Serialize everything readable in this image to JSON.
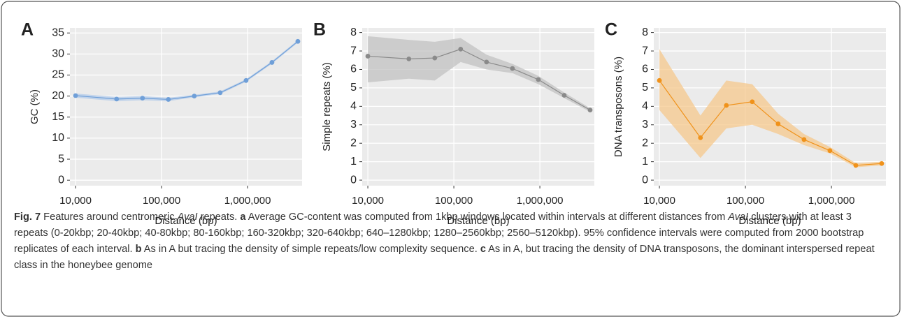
{
  "chart_data": [
    {
      "type": "line",
      "panel": "A",
      "ylabel": "GC (%)",
      "xlabel": "Distance (bp)",
      "log_x": true,
      "grid": true,
      "color": "#6f9fd8",
      "band_color": "#b3cbea",
      "x": [
        10000,
        30000,
        60000,
        120000,
        240000,
        480000,
        960000,
        1920000,
        3840000
      ],
      "values": [
        20.1,
        19.3,
        19.5,
        19.2,
        20.0,
        20.8,
        23.7,
        28.0,
        33.0
      ],
      "lower": [
        19.6,
        18.8,
        19.0,
        18.8,
        19.7,
        20.5,
        23.4,
        27.7,
        32.7
      ],
      "upper": [
        20.6,
        19.8,
        20.0,
        19.6,
        20.3,
        21.1,
        24.0,
        28.3,
        33.3
      ],
      "xlim": [
        8600,
        4300000
      ],
      "ylim": [
        -1.3,
        36.2
      ],
      "xticks": [
        {
          "value": 10000,
          "label": "10,000"
        },
        {
          "value": 100000,
          "label": "100,000"
        },
        {
          "value": 1000000,
          "label": "1,000,000"
        }
      ],
      "yticks": [
        0,
        5,
        10,
        15,
        20,
        25,
        30,
        35
      ]
    },
    {
      "type": "line",
      "panel": "B",
      "ylabel": "Simple repeats (%)",
      "xlabel": "Distance (bp)",
      "log_x": true,
      "grid": true,
      "color": "#8a8a8a",
      "band_color": "#c2c2c2",
      "x": [
        10000,
        30000,
        60000,
        120000,
        240000,
        480000,
        960000,
        1920000,
        3840000
      ],
      "values": [
        6.72,
        6.57,
        6.62,
        7.1,
        6.4,
        6.05,
        5.45,
        4.6,
        3.8
      ],
      "lower": [
        5.3,
        5.5,
        5.4,
        6.4,
        6.0,
        5.8,
        5.2,
        4.45,
        3.7
      ],
      "upper": [
        7.8,
        7.6,
        7.5,
        7.7,
        6.8,
        6.3,
        5.65,
        4.75,
        3.9
      ],
      "xlim": [
        8600,
        4300000
      ],
      "ylim": [
        -0.3,
        8.25
      ],
      "xticks": [
        {
          "value": 10000,
          "label": "10,000"
        },
        {
          "value": 100000,
          "label": "100,000"
        },
        {
          "value": 1000000,
          "label": "1,000,000"
        }
      ],
      "yticks": [
        0,
        1,
        2,
        3,
        4,
        5,
        6,
        7,
        8
      ]
    },
    {
      "type": "line",
      "panel": "C",
      "ylabel": "DNA transposons (%)",
      "xlabel": "Distance (bp)",
      "log_x": true,
      "grid": true,
      "color": "#f0921a",
      "band_color": "#f6c88c",
      "x": [
        10000,
        30000,
        60000,
        120000,
        240000,
        480000,
        960000,
        1920000,
        3840000
      ],
      "values": [
        5.4,
        2.3,
        4.05,
        4.25,
        3.05,
        2.2,
        1.6,
        0.8,
        0.9
      ],
      "lower": [
        3.8,
        1.2,
        2.8,
        3.0,
        2.5,
        1.9,
        1.45,
        0.7,
        0.8
      ],
      "upper": [
        7.1,
        3.5,
        5.4,
        5.2,
        3.6,
        2.5,
        1.8,
        0.92,
        1.0
      ],
      "xlim": [
        8600,
        4300000
      ],
      "ylim": [
        -0.3,
        8.25
      ],
      "xticks": [
        {
          "value": 10000,
          "label": "10,000"
        },
        {
          "value": 100000,
          "label": "100,000"
        },
        {
          "value": 1000000,
          "label": "1,000,000"
        }
      ],
      "yticks": [
        0,
        1,
        2,
        3,
        4,
        5,
        6,
        7,
        8
      ]
    }
  ],
  "caption": [
    {
      "text": "Fig. 7",
      "style": "bold"
    },
    {
      "text": " Features around centromeric ",
      "style": "normal"
    },
    {
      "text": "AvaI",
      "style": "italic"
    },
    {
      "text": " repeats. ",
      "style": "normal"
    },
    {
      "text": "a",
      "style": "bold"
    },
    {
      "text": " Average GC-content was computed from 1kbp windows located within intervals at different distances from ",
      "style": "normal"
    },
    {
      "text": "AvaI",
      "style": "italic"
    },
    {
      "text": " clusters with at least 3 repeats (0-20kbp; 20-40kbp; 40-80kbp; 80-160kbp; 160-320kbp; 320-640kbp; 640–1280kbp; 1280–2560kbp; 2560–5120kbp). 95% confidence intervals were computed from 2000 bootstrap replicates of each interval. ",
      "style": "normal"
    },
    {
      "text": "b",
      "style": "bold"
    },
    {
      "text": " As in A but tracing the density of simple repeats/low complexity sequence. ",
      "style": "normal"
    },
    {
      "text": "c",
      "style": "bold"
    },
    {
      "text": " As in A, but tracing the density of DNA transposons, the dominant interspersed repeat class in the honeybee genome",
      "style": "normal"
    }
  ]
}
